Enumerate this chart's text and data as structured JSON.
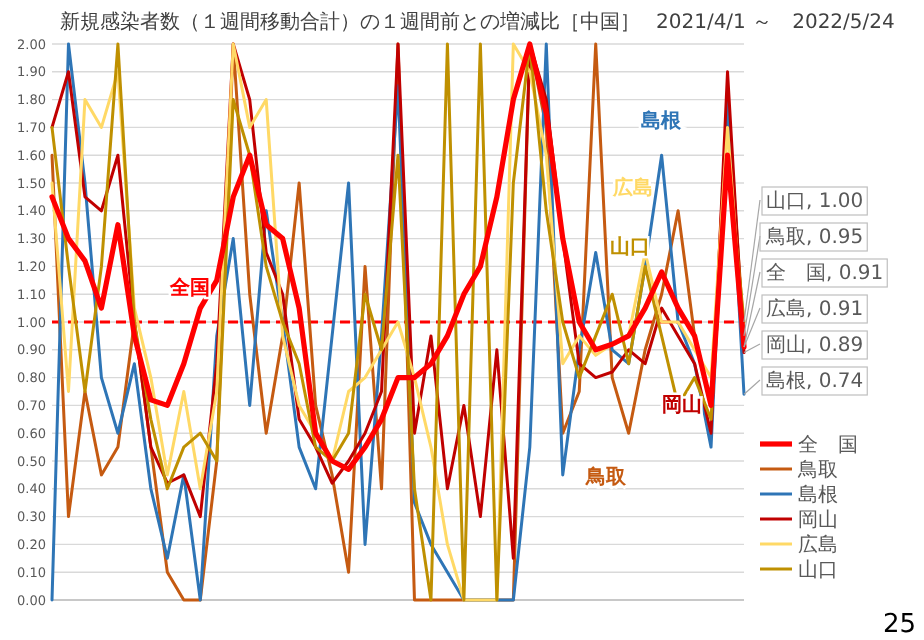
{
  "chart_data": {
    "type": "line",
    "title": "新規感染者数（１週間移動合計）の１週間前との増減比［中国］",
    "subtitle": "2021/4/1 ～　2022/5/24",
    "categories": [
      null,
      null,
      null,
      null,
      null,
      null,
      null,
      null,
      null,
      null,
      null,
      null,
      null,
      null,
      null,
      null,
      null,
      null,
      null,
      null,
      null,
      null,
      null,
      null,
      null,
      null,
      null,
      null,
      null,
      null,
      null,
      null,
      null,
      null,
      null,
      null,
      null,
      null,
      null,
      null,
      null,
      null,
      null
    ],
    "series": [
      {
        "name": "全　国",
        "color": "#ff0000",
        "values": [
          1.45,
          1.3,
          1.22,
          1.05,
          1.35,
          0.95,
          0.72,
          0.7,
          0.85,
          1.05,
          1.15,
          1.45,
          1.6,
          1.35,
          1.3,
          1.05,
          0.6,
          0.5,
          0.47,
          0.55,
          0.65,
          0.8,
          0.8,
          0.85,
          0.95,
          1.1,
          1.2,
          1.45,
          1.8,
          2.0,
          1.75,
          1.3,
          1.0,
          0.9,
          0.92,
          0.95,
          1.05,
          1.18,
          1.05,
          0.95,
          0.7,
          1.6,
          0.91
        ],
        "value_labels": [
          null,
          null,
          null,
          null,
          null,
          null,
          null,
          null,
          null,
          null,
          null,
          null,
          null,
          null,
          null,
          null,
          null,
          null,
          null,
          null,
          null,
          null,
          null,
          null,
          null,
          null,
          null,
          null,
          null,
          null,
          null,
          null,
          null,
          null,
          null,
          null,
          null,
          null,
          null,
          null,
          null,
          null,
          "全　国, 0.91"
        ]
      },
      {
        "name": "鳥取",
        "color": "#c55a11",
        "values": [
          1.6,
          0.3,
          0.75,
          0.45,
          0.55,
          1.0,
          0.55,
          0.1,
          0.0,
          0.0,
          0.5,
          2.0,
          1.1,
          0.6,
          0.95,
          1.5,
          0.7,
          0.45,
          0.1,
          1.2,
          0.4,
          2.0,
          0.0,
          0.0,
          0.0,
          0.0,
          0.0,
          0.0,
          0.0,
          2.0,
          1.7,
          0.6,
          0.75,
          2.0,
          0.8,
          0.6,
          0.9,
          1.1,
          1.4,
          0.95,
          0.7,
          1.8,
          0.95
        ],
        "value_labels": [
          null,
          null,
          null,
          null,
          null,
          null,
          null,
          null,
          null,
          null,
          null,
          null,
          null,
          null,
          null,
          null,
          null,
          null,
          null,
          null,
          null,
          null,
          null,
          null,
          null,
          null,
          null,
          null,
          null,
          null,
          null,
          null,
          null,
          null,
          null,
          null,
          null,
          null,
          null,
          null,
          null,
          null,
          "鳥取, 0.95"
        ]
      },
      {
        "name": "島根",
        "color": "#2e75b6",
        "values": [
          0.0,
          2.0,
          1.5,
          0.8,
          0.6,
          0.85,
          0.4,
          0.15,
          0.45,
          0.0,
          0.95,
          1.3,
          0.7,
          1.4,
          1.0,
          0.55,
          0.4,
          0.95,
          1.5,
          0.2,
          0.95,
          1.85,
          0.35,
          0.2,
          0.1,
          0.0,
          0.0,
          0.0,
          0.0,
          0.55,
          2.0,
          0.45,
          0.9,
          1.25,
          0.9,
          0.85,
          1.2,
          1.6,
          1.0,
          0.85,
          0.55,
          1.8,
          0.74
        ],
        "value_labels": [
          null,
          null,
          null,
          null,
          null,
          null,
          null,
          null,
          null,
          null,
          null,
          null,
          null,
          null,
          null,
          null,
          null,
          null,
          null,
          null,
          null,
          null,
          null,
          null,
          null,
          null,
          null,
          null,
          null,
          null,
          null,
          null,
          null,
          null,
          null,
          null,
          null,
          null,
          null,
          null,
          null,
          null,
          "島根, 0.74"
        ]
      },
      {
        "name": "岡山",
        "color": "#c00000",
        "values": [
          1.7,
          1.9,
          1.45,
          1.4,
          1.6,
          1.0,
          0.55,
          0.42,
          0.45,
          0.3,
          0.85,
          2.0,
          1.8,
          1.25,
          1.1,
          0.65,
          0.55,
          0.42,
          0.5,
          0.6,
          0.75,
          2.0,
          0.6,
          0.95,
          0.4,
          0.7,
          0.3,
          0.9,
          0.15,
          2.0,
          1.8,
          1.3,
          0.85,
          0.8,
          0.82,
          0.9,
          0.85,
          1.05,
          0.95,
          0.85,
          0.6,
          1.9,
          0.89
        ],
        "value_labels": [
          null,
          null,
          null,
          null,
          null,
          null,
          null,
          null,
          null,
          null,
          null,
          null,
          null,
          null,
          null,
          null,
          null,
          null,
          null,
          null,
          null,
          null,
          null,
          null,
          null,
          null,
          null,
          null,
          null,
          null,
          null,
          null,
          null,
          null,
          null,
          null,
          null,
          null,
          null,
          null,
          null,
          null,
          "岡山, 0.89"
        ]
      },
      {
        "name": "広島",
        "color": "#ffd966",
        "values": [
          1.5,
          0.75,
          1.8,
          1.7,
          1.9,
          1.05,
          0.8,
          0.45,
          0.75,
          0.4,
          0.75,
          2.0,
          1.7,
          1.8,
          0.95,
          0.7,
          0.6,
          0.5,
          0.75,
          0.8,
          0.9,
          1.0,
          0.8,
          0.55,
          0.2,
          0.0,
          0.0,
          0.0,
          2.0,
          1.9,
          1.6,
          0.85,
          0.95,
          0.88,
          0.92,
          0.95,
          1.25,
          1.0,
          1.0,
          0.9,
          0.8,
          1.7,
          0.91
        ],
        "value_labels": [
          null,
          null,
          null,
          null,
          null,
          null,
          null,
          null,
          null,
          null,
          null,
          null,
          null,
          null,
          null,
          null,
          null,
          null,
          null,
          null,
          null,
          null,
          null,
          null,
          null,
          null,
          null,
          null,
          null,
          null,
          null,
          null,
          null,
          null,
          null,
          null,
          null,
          null,
          null,
          null,
          null,
          null,
          "広島, 0.91"
        ]
      },
      {
        "name": "山口",
        "color": "#bf9000",
        "values": [
          1.7,
          1.2,
          0.75,
          1.2,
          2.0,
          1.0,
          0.65,
          0.4,
          0.55,
          0.6,
          0.5,
          1.8,
          1.6,
          1.2,
          1.0,
          0.85,
          0.55,
          0.5,
          0.6,
          1.1,
          0.9,
          1.6,
          0.4,
          0.0,
          2.0,
          0.0,
          2.0,
          0.0,
          1.5,
          2.0,
          1.4,
          1.0,
          0.8,
          0.95,
          1.1,
          0.85,
          1.2,
          0.95,
          0.7,
          0.8,
          0.65,
          1.6,
          1.0
        ],
        "value_labels": [
          null,
          null,
          null,
          null,
          null,
          null,
          null,
          null,
          null,
          null,
          null,
          null,
          null,
          null,
          null,
          null,
          null,
          null,
          null,
          null,
          null,
          null,
          null,
          null,
          null,
          null,
          null,
          null,
          null,
          null,
          null,
          null,
          null,
          null,
          null,
          null,
          null,
          null,
          null,
          null,
          null,
          null,
          "山口, 1.00"
        ]
      }
    ],
    "ylim": [
      0,
      2
    ],
    "yticks": [
      {
        "value": 0,
        "label": "0.00"
      },
      {
        "value": 0.1,
        "label": "0.10"
      },
      {
        "value": 0.2,
        "label": "0.20"
      },
      {
        "value": 0.3,
        "label": "0.30"
      },
      {
        "value": 0.4,
        "label": "0.40"
      },
      {
        "value": 0.5,
        "label": "0.50"
      },
      {
        "value": 0.6,
        "label": "0.60"
      },
      {
        "value": 0.7,
        "label": "0.70"
      },
      {
        "value": 0.8,
        "label": "0.80"
      },
      {
        "value": 0.9,
        "label": "0.90"
      },
      {
        "value": 1,
        "label": "1.00"
      },
      {
        "value": 1.1,
        "label": "1.10"
      },
      {
        "value": 1.2,
        "label": "1.20"
      },
      {
        "value": 1.3,
        "label": "1.30"
      },
      {
        "value": 1.4,
        "label": "1.40"
      },
      {
        "value": 1.5,
        "label": "1.50"
      },
      {
        "value": 1.6,
        "label": "1.60"
      },
      {
        "value": 1.7,
        "label": "1.70"
      },
      {
        "value": 1.8,
        "label": "1.80"
      },
      {
        "value": 1.9,
        "label": "1.90"
      },
      {
        "value": 2,
        "label": "2.00"
      }
    ],
    "tick_labels": "y",
    "grid": "y",
    "legend": "bottom right",
    "ref_lines": [
      {
        "axis": "y",
        "value": 1,
        "color": "#ff0000",
        "line_style": "dashed"
      }
    ],
    "annotations": [
      "全国",
      "島根",
      "広島",
      "山口",
      "鳥取",
      "岡山",
      "25"
    ]
  }
}
